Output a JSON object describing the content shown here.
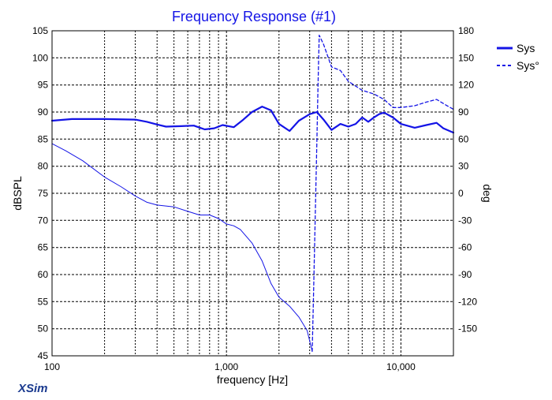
{
  "chart_data": {
    "type": "line",
    "title": "Frequency Response (#1)",
    "xlabel": "frequency [Hz]",
    "ylabel": "dBSPL",
    "y2label": "deg",
    "x_scale": "log",
    "xlim": [
      100,
      20000
    ],
    "ylim": [
      45,
      105
    ],
    "y2lim": [
      -180,
      180
    ],
    "x_tick_labels": [
      {
        "value": 100,
        "label": "100"
      },
      {
        "value": 1000,
        "label": "1,000"
      },
      {
        "value": 10000,
        "label": "10,000"
      }
    ],
    "y_ticks": [
      45,
      50,
      55,
      60,
      65,
      70,
      75,
      80,
      85,
      90,
      95,
      100,
      105
    ],
    "y2_ticks": [
      -150,
      -120,
      -90,
      -60,
      -30,
      0,
      30,
      60,
      90,
      120,
      150,
      180
    ],
    "grid": true,
    "legend": "right",
    "series": [
      {
        "name": "Sys",
        "axis": "left",
        "style": "solid",
        "color": "#1414e6",
        "points": [
          [
            100,
            88.4
          ],
          [
            130,
            88.7
          ],
          [
            200,
            88.7
          ],
          [
            300,
            88.6
          ],
          [
            350,
            88.2
          ],
          [
            400,
            87.7
          ],
          [
            450,
            87.3
          ],
          [
            550,
            87.4
          ],
          [
            650,
            87.5
          ],
          [
            750,
            86.8
          ],
          [
            850,
            87.0
          ],
          [
            950,
            87.6
          ],
          [
            1100,
            87.2
          ],
          [
            1250,
            88.6
          ],
          [
            1400,
            90.0
          ],
          [
            1600,
            91.0
          ],
          [
            1800,
            90.3
          ],
          [
            2000,
            87.8
          ],
          [
            2300,
            86.5
          ],
          [
            2600,
            88.4
          ],
          [
            3000,
            89.6
          ],
          [
            3300,
            90.0
          ],
          [
            3600,
            88.6
          ],
          [
            4000,
            86.7
          ],
          [
            4500,
            87.8
          ],
          [
            5000,
            87.3
          ],
          [
            5500,
            87.8
          ],
          [
            6000,
            89.0
          ],
          [
            6500,
            88.2
          ],
          [
            7000,
            89.0
          ],
          [
            7500,
            89.6
          ],
          [
            8000,
            89.9
          ],
          [
            9000,
            89.0
          ],
          [
            10000,
            87.8
          ],
          [
            12000,
            87.1
          ],
          [
            14000,
            87.6
          ],
          [
            16000,
            88.0
          ],
          [
            17500,
            87.0
          ],
          [
            20000,
            86.2
          ]
        ]
      },
      {
        "name": "Sys°",
        "axis": "right",
        "style": "dashed",
        "color": "#1414e6",
        "points": [
          [
            3100,
            -175
          ],
          [
            3150,
            -120
          ],
          [
            3200,
            -60
          ],
          [
            3250,
            0
          ],
          [
            3300,
            60
          ],
          [
            3350,
            120
          ],
          [
            3400,
            175
          ],
          [
            3600,
            165
          ],
          [
            4000,
            140
          ],
          [
            4500,
            136
          ],
          [
            5000,
            124
          ],
          [
            6000,
            114
          ],
          [
            7000,
            110
          ],
          [
            8000,
            104
          ],
          [
            9000,
            95
          ],
          [
            10000,
            95
          ],
          [
            12000,
            97
          ],
          [
            14000,
            101
          ],
          [
            16000,
            104
          ],
          [
            18000,
            98
          ],
          [
            20000,
            93
          ]
        ]
      },
      {
        "name": "",
        "axis": "right",
        "style": "solid-thin",
        "color": "#1414e6",
        "points": [
          [
            100,
            55
          ],
          [
            120,
            47
          ],
          [
            150,
            36
          ],
          [
            200,
            18
          ],
          [
            250,
            7
          ],
          [
            300,
            -3
          ],
          [
            350,
            -10
          ],
          [
            400,
            -13
          ],
          [
            500,
            -15
          ],
          [
            600,
            -20
          ],
          [
            700,
            -24
          ],
          [
            800,
            -24
          ],
          [
            900,
            -28
          ],
          [
            1000,
            -34
          ],
          [
            1100,
            -36
          ],
          [
            1200,
            -40
          ],
          [
            1400,
            -55
          ],
          [
            1600,
            -75
          ],
          [
            1800,
            -100
          ],
          [
            2000,
            -115
          ],
          [
            2300,
            -125
          ],
          [
            2600,
            -137
          ],
          [
            2900,
            -152
          ],
          [
            3100,
            -175
          ]
        ]
      }
    ]
  },
  "brand": "XSim"
}
